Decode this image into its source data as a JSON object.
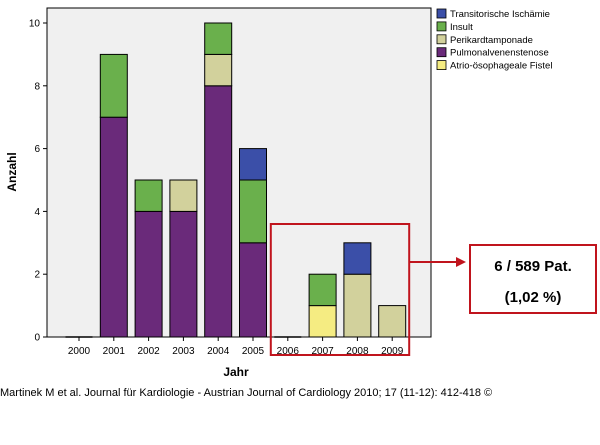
{
  "chart_data": {
    "type": "bar",
    "stacked": true,
    "xlabel": "Jahr",
    "ylabel": "Anzahl",
    "ylim": [
      0,
      10
    ],
    "yticks": [
      0,
      2,
      4,
      6,
      8,
      10
    ],
    "grid": false,
    "legend_position": "top-right",
    "categories": [
      "2000",
      "2001",
      "2002",
      "2003",
      "2004",
      "2005",
      "2006",
      "2007",
      "2008",
      "2009"
    ],
    "series": [
      {
        "name": "Pulmonalvenenstenose",
        "color": "#6a2a7a",
        "values": [
          0,
          7,
          4,
          4,
          8,
          3,
          0,
          0,
          0,
          0
        ]
      },
      {
        "name": "Atrio-ösophageale Fistel",
        "color": "#f5ec82",
        "values": [
          0,
          0,
          0,
          0,
          0,
          0,
          0,
          1,
          0,
          0
        ]
      },
      {
        "name": "Perikardtamponade",
        "color": "#d2d19c",
        "values": [
          0,
          0,
          0,
          1,
          1,
          0,
          0,
          0,
          2,
          1
        ]
      },
      {
        "name": "Insult",
        "color": "#6ab04c",
        "values": [
          0,
          2,
          1,
          0,
          1,
          2,
          0,
          1,
          0,
          0
        ]
      },
      {
        "name": "Transitorische Ischämie",
        "color": "#3b4fa8",
        "values": [
          0,
          0,
          0,
          0,
          0,
          1,
          0,
          0,
          1,
          0
        ]
      }
    ],
    "legend_order": [
      "Transitorische Ischämie",
      "Insult",
      "Perikardtamponade",
      "Pulmonalvenenstenose",
      "Atrio-ösophageale Fistel"
    ],
    "highlight_categories": [
      "2006",
      "2007",
      "2008",
      "2009"
    ],
    "highlight_color": "#c0141d",
    "annotation": {
      "line1": "6 / 589 Pat.",
      "line2": "(1,02 %)"
    }
  },
  "citation": "Martinek M et al. Journal für Kardiologie - Austrian Journal of Cardiology 2010; 17 (11-12): 412-418 ©"
}
